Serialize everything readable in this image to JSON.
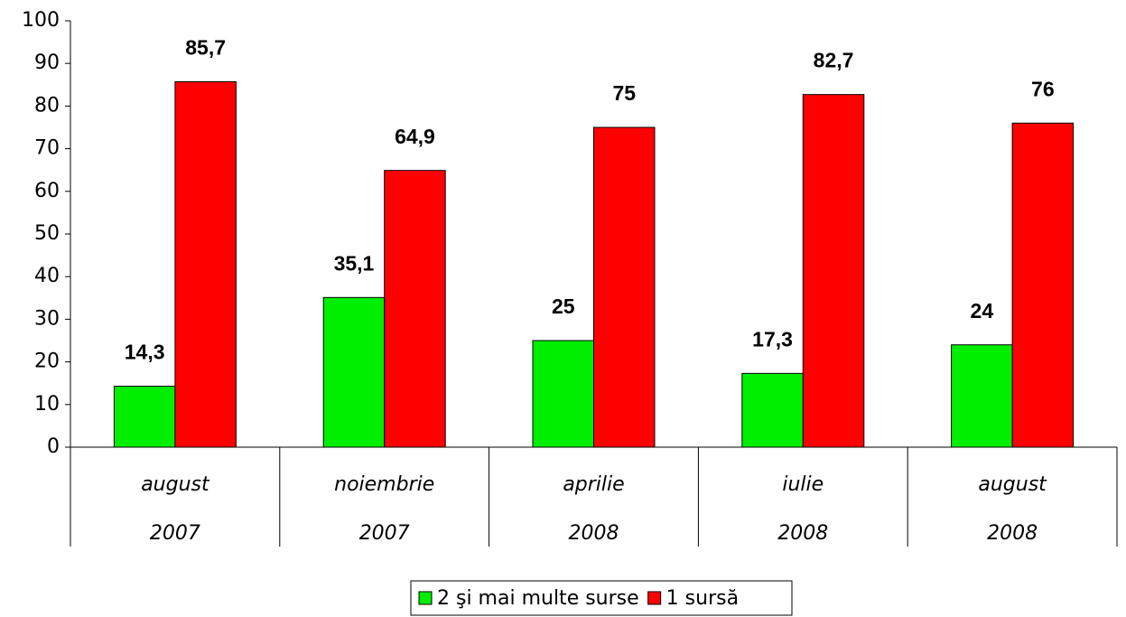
{
  "chart_data": {
    "type": "bar",
    "categories": [
      [
        "august",
        "2007"
      ],
      [
        "noiembrie",
        "2007"
      ],
      [
        "aprilie",
        "2008"
      ],
      [
        "iulie",
        "2008"
      ],
      [
        "august",
        "2008"
      ]
    ],
    "series": [
      {
        "name": "2 şi mai multe surse",
        "color": "#00ee00",
        "values": [
          14.3,
          35.1,
          25,
          17.3,
          24
        ],
        "value_labels": [
          "14,3",
          "35,1",
          "25",
          "17,3",
          "24"
        ]
      },
      {
        "name": "1 sursă",
        "color": "#ff0000",
        "values": [
          85.7,
          64.9,
          75,
          82.7,
          76
        ],
        "value_labels": [
          "85,7",
          "64,9",
          "75",
          "82,7",
          "76"
        ]
      }
    ],
    "ylim": [
      0,
      100
    ],
    "yticks": [
      0,
      10,
      20,
      30,
      40,
      50,
      60,
      70,
      80,
      90,
      100
    ],
    "grid": false,
    "legend": "bottom"
  }
}
